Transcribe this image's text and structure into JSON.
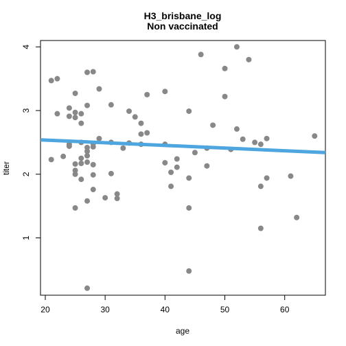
{
  "chart_data": {
    "type": "scatter",
    "title": "H3_brisbane_log",
    "subtitle": "Non vaccinated",
    "xlabel": "age",
    "ylabel": "titer",
    "xlim": [
      19.2,
      66.8
    ],
    "ylim": [
      0.1,
      4.1
    ],
    "x_ticks": [
      20,
      30,
      40,
      50,
      60
    ],
    "y_ticks": [
      1,
      2,
      3,
      4
    ],
    "grid": false,
    "point_color": "#888888",
    "line_color": "#4da6e0",
    "regression_line": {
      "x": [
        19.2,
        66.8
      ],
      "y": [
        2.54,
        2.34
      ]
    },
    "points": [
      {
        "x": 21,
        "y": 3.47
      },
      {
        "x": 21,
        "y": 2.23
      },
      {
        "x": 22,
        "y": 3.5
      },
      {
        "x": 22,
        "y": 2.95
      },
      {
        "x": 23,
        "y": 2.28
      },
      {
        "x": 24,
        "y": 3.04
      },
      {
        "x": 24,
        "y": 2.91
      },
      {
        "x": 24,
        "y": 2.47
      },
      {
        "x": 24,
        "y": 2.44
      },
      {
        "x": 25,
        "y": 3.27
      },
      {
        "x": 25,
        "y": 2.97
      },
      {
        "x": 25,
        "y": 2.89
      },
      {
        "x": 25,
        "y": 2.16
      },
      {
        "x": 25,
        "y": 2.06
      },
      {
        "x": 25,
        "y": 2.0
      },
      {
        "x": 25,
        "y": 1.47
      },
      {
        "x": 26,
        "y": 2.95
      },
      {
        "x": 26,
        "y": 2.8
      },
      {
        "x": 26,
        "y": 2.5
      },
      {
        "x": 26,
        "y": 2.25
      },
      {
        "x": 26,
        "y": 2.17
      },
      {
        "x": 26,
        "y": 1.92
      },
      {
        "x": 27,
        "y": 3.6
      },
      {
        "x": 27,
        "y": 3.08
      },
      {
        "x": 27,
        "y": 2.42
      },
      {
        "x": 27,
        "y": 2.36
      },
      {
        "x": 27,
        "y": 2.29
      },
      {
        "x": 27,
        "y": 2.19
      },
      {
        "x": 27,
        "y": 1.58
      },
      {
        "x": 27,
        "y": 0.21
      },
      {
        "x": 28,
        "y": 3.61
      },
      {
        "x": 28,
        "y": 2.48
      },
      {
        "x": 28,
        "y": 2.43
      },
      {
        "x": 28,
        "y": 2.15
      },
      {
        "x": 28,
        "y": 1.99
      },
      {
        "x": 28,
        "y": 1.76
      },
      {
        "x": 29,
        "y": 3.34
      },
      {
        "x": 29,
        "y": 2.56
      },
      {
        "x": 30,
        "y": 1.63
      },
      {
        "x": 31,
        "y": 3.09
      },
      {
        "x": 31,
        "y": 2.5
      },
      {
        "x": 31,
        "y": 2.01
      },
      {
        "x": 32,
        "y": 1.69
      },
      {
        "x": 32,
        "y": 1.62
      },
      {
        "x": 33,
        "y": 2.41
      },
      {
        "x": 34,
        "y": 2.99
      },
      {
        "x": 34,
        "y": 2.49
      },
      {
        "x": 35,
        "y": 2.9
      },
      {
        "x": 36,
        "y": 2.8
      },
      {
        "x": 36,
        "y": 2.63
      },
      {
        "x": 36,
        "y": 2.47
      },
      {
        "x": 37,
        "y": 3.25
      },
      {
        "x": 37,
        "y": 2.65
      },
      {
        "x": 40,
        "y": 3.3
      },
      {
        "x": 40,
        "y": 2.47
      },
      {
        "x": 40,
        "y": 2.18
      },
      {
        "x": 41,
        "y": 2.03
      },
      {
        "x": 41,
        "y": 1.81
      },
      {
        "x": 42,
        "y": 2.24
      },
      {
        "x": 42,
        "y": 2.11
      },
      {
        "x": 44,
        "y": 2.99
      },
      {
        "x": 44,
        "y": 1.94
      },
      {
        "x": 44,
        "y": 1.47
      },
      {
        "x": 44,
        "y": 0.48
      },
      {
        "x": 45,
        "y": 2.34
      },
      {
        "x": 46,
        "y": 3.88
      },
      {
        "x": 47,
        "y": 2.41
      },
      {
        "x": 47,
        "y": 2.13
      },
      {
        "x": 48,
        "y": 2.77
      },
      {
        "x": 50,
        "y": 3.66
      },
      {
        "x": 50,
        "y": 3.22
      },
      {
        "x": 51,
        "y": 2.39
      },
      {
        "x": 52,
        "y": 4.0
      },
      {
        "x": 52,
        "y": 2.71
      },
      {
        "x": 53,
        "y": 2.55
      },
      {
        "x": 54,
        "y": 3.8
      },
      {
        "x": 55,
        "y": 2.5
      },
      {
        "x": 56,
        "y": 2.47
      },
      {
        "x": 56,
        "y": 1.81
      },
      {
        "x": 56,
        "y": 1.15
      },
      {
        "x": 57,
        "y": 2.56
      },
      {
        "x": 57,
        "y": 1.94
      },
      {
        "x": 61,
        "y": 1.97
      },
      {
        "x": 62,
        "y": 1.32
      },
      {
        "x": 65,
        "y": 2.6
      }
    ]
  }
}
